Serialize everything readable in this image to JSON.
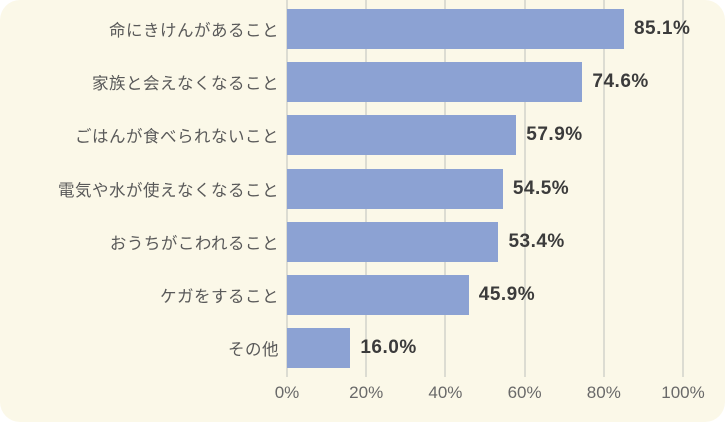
{
  "chart_data": {
    "type": "bar",
    "orientation": "horizontal",
    "title": "",
    "xlabel": "",
    "ylabel": "",
    "categories": [
      "命にきけんがあること",
      "家族と会えなくなること",
      "ごはんが食べられないこと",
      "電気や水が使えなくなること",
      "おうちがこわれること",
      "ケガをすること",
      "その他"
    ],
    "values": [
      85.1,
      74.6,
      57.9,
      54.5,
      53.4,
      45.9,
      16.0
    ],
    "value_labels": [
      "85.1%",
      "74.6%",
      "57.9%",
      "54.5%",
      "53.4%",
      "45.9%",
      "16.0%"
    ],
    "xlim": [
      0,
      100
    ],
    "x_ticks": [
      0,
      20,
      40,
      60,
      80,
      100
    ],
    "x_tick_labels": [
      "0%",
      "20%",
      "40%",
      "60%",
      "80%",
      "100%"
    ],
    "grid": "vertical",
    "legend": "none",
    "colors": {
      "bar": "#8CA2D3",
      "background": "#FBF8E8",
      "gridline": "#DCDCD2",
      "category_text": "#595959",
      "value_text": "#3B3B3B",
      "axis_text": "#696969"
    }
  }
}
